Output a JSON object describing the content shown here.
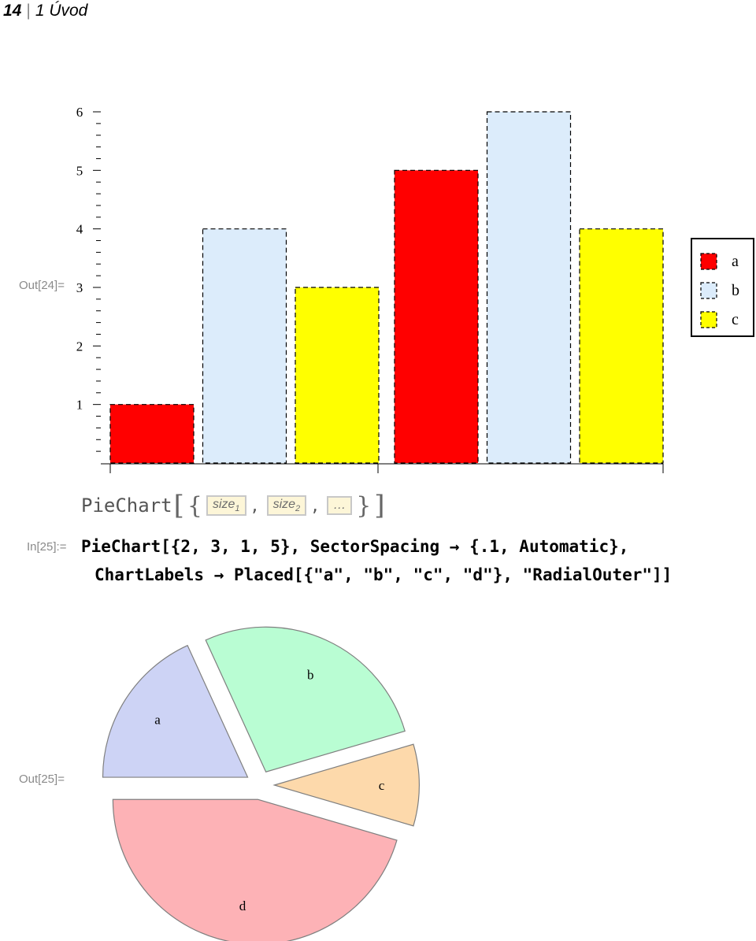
{
  "header": {
    "page_number": "14",
    "separator": "|",
    "chapter": "1 Úvod"
  },
  "cells": {
    "out24_label": "Out[24]=",
    "in25_label": "In[25]:=",
    "out25_label": "Out[25]="
  },
  "template": {
    "function": "PieChart",
    "placeholder1": "size",
    "placeholder1_sub": "1",
    "placeholder2": "size",
    "placeholder2_sub": "2",
    "ellipsis": "…",
    "comma": ","
  },
  "code": {
    "line1": "PieChart[{2, 3, 1, 5}, SectorSpacing → {.1, Automatic},",
    "line2": "ChartLabels → Placed[{\"a\", \"b\", \"c\", \"d\"}, \"RadialOuter\"]]"
  },
  "chart_data": [
    {
      "type": "bar",
      "ylim": [
        0,
        6
      ],
      "yticks": [
        1,
        2,
        3,
        4,
        5,
        6
      ],
      "groups": [
        {
          "values": [
            1,
            4,
            3
          ]
        },
        {
          "values": [
            5,
            6,
            4
          ]
        }
      ],
      "series": [
        {
          "name": "a",
          "color": "#ff0000",
          "dashed": true
        },
        {
          "name": "b",
          "color": "#dcecfb",
          "dashed": true
        },
        {
          "name": "c",
          "color": "#ffff00",
          "dashed": true
        }
      ],
      "legend_position": "right"
    },
    {
      "type": "pie",
      "values": [
        2,
        3,
        1,
        5
      ],
      "labels": [
        "a",
        "b",
        "c",
        "d"
      ],
      "colors": [
        "#cdd3f5",
        "#b9fdd3",
        "#fdd9ab",
        "#fdb2b6"
      ],
      "stroke": "#7f7f7f",
      "sector_spacing": 0.1,
      "label_placement": "RadialOuter"
    }
  ]
}
